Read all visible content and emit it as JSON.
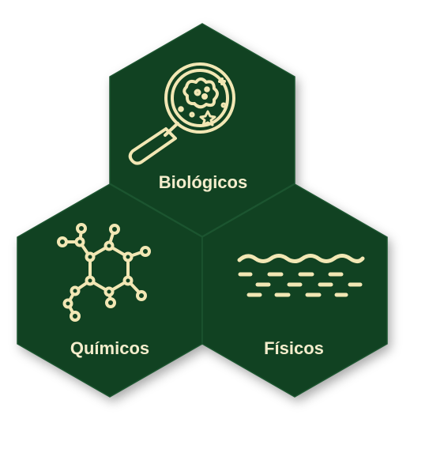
{
  "colors": {
    "hex_fill": "#114222",
    "hex_edge": "#1c5530",
    "icon_stroke": "#f2e7b4",
    "label_text": "#f4edcc",
    "background": "#ffffff"
  },
  "hexagons": {
    "biologicos": {
      "label": "Biológicos",
      "icon": "magnifier-microbe-icon"
    },
    "quimicos": {
      "label": "Químicos",
      "icon": "molecule-icon"
    },
    "fisicos": {
      "label": "Físicos",
      "icon": "waves-icon"
    }
  }
}
